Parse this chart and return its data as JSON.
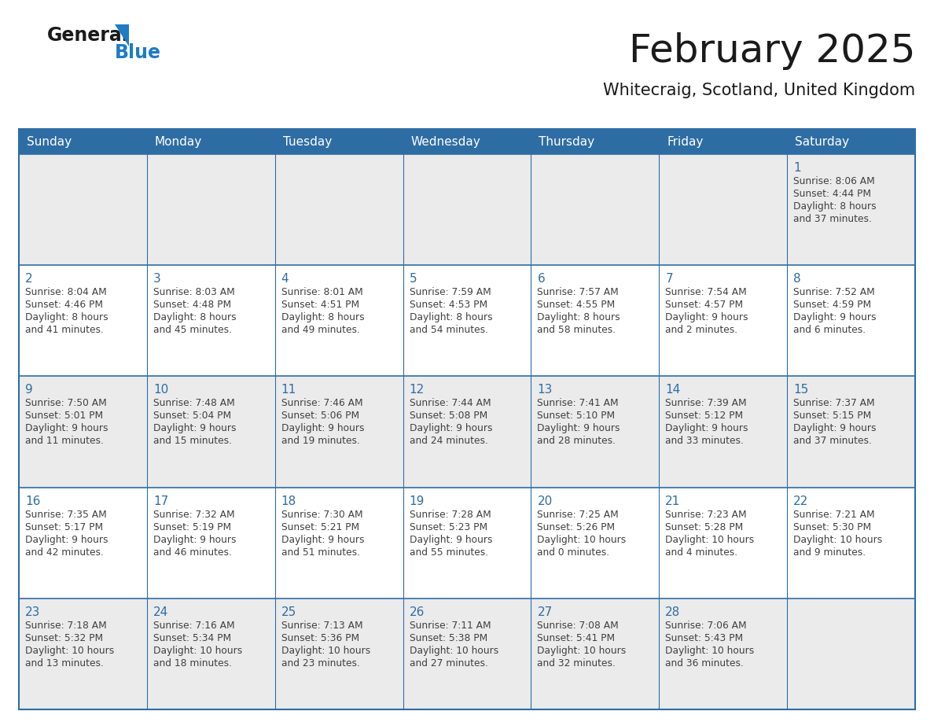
{
  "title": "February 2025",
  "subtitle": "Whitecraig, Scotland, United Kingdom",
  "header_bg": "#2E6DA4",
  "header_text_color": "#FFFFFF",
  "cell_bg_odd": "#EBEBEB",
  "cell_bg_even": "#FFFFFF",
  "cell_border_color": "#2E6DA4",
  "day_number_color": "#2E6DA4",
  "cell_text_color": "#404040",
  "title_color": "#1a1a1a",
  "subtitle_color": "#1a1a1a",
  "days_of_week": [
    "Sunday",
    "Monday",
    "Tuesday",
    "Wednesday",
    "Thursday",
    "Friday",
    "Saturday"
  ],
  "weeks": [
    [
      {
        "day": null,
        "sunrise": null,
        "sunset": null,
        "daylight": null
      },
      {
        "day": null,
        "sunrise": null,
        "sunset": null,
        "daylight": null
      },
      {
        "day": null,
        "sunrise": null,
        "sunset": null,
        "daylight": null
      },
      {
        "day": null,
        "sunrise": null,
        "sunset": null,
        "daylight": null
      },
      {
        "day": null,
        "sunrise": null,
        "sunset": null,
        "daylight": null
      },
      {
        "day": null,
        "sunrise": null,
        "sunset": null,
        "daylight": null
      },
      {
        "day": 1,
        "sunrise": "8:06 AM",
        "sunset": "4:44 PM",
        "daylight": "8 hours\nand 37 minutes."
      }
    ],
    [
      {
        "day": 2,
        "sunrise": "8:04 AM",
        "sunset": "4:46 PM",
        "daylight": "8 hours\nand 41 minutes."
      },
      {
        "day": 3,
        "sunrise": "8:03 AM",
        "sunset": "4:48 PM",
        "daylight": "8 hours\nand 45 minutes."
      },
      {
        "day": 4,
        "sunrise": "8:01 AM",
        "sunset": "4:51 PM",
        "daylight": "8 hours\nand 49 minutes."
      },
      {
        "day": 5,
        "sunrise": "7:59 AM",
        "sunset": "4:53 PM",
        "daylight": "8 hours\nand 54 minutes."
      },
      {
        "day": 6,
        "sunrise": "7:57 AM",
        "sunset": "4:55 PM",
        "daylight": "8 hours\nand 58 minutes."
      },
      {
        "day": 7,
        "sunrise": "7:54 AM",
        "sunset": "4:57 PM",
        "daylight": "9 hours\nand 2 minutes."
      },
      {
        "day": 8,
        "sunrise": "7:52 AM",
        "sunset": "4:59 PM",
        "daylight": "9 hours\nand 6 minutes."
      }
    ],
    [
      {
        "day": 9,
        "sunrise": "7:50 AM",
        "sunset": "5:01 PM",
        "daylight": "9 hours\nand 11 minutes."
      },
      {
        "day": 10,
        "sunrise": "7:48 AM",
        "sunset": "5:04 PM",
        "daylight": "9 hours\nand 15 minutes."
      },
      {
        "day": 11,
        "sunrise": "7:46 AM",
        "sunset": "5:06 PM",
        "daylight": "9 hours\nand 19 minutes."
      },
      {
        "day": 12,
        "sunrise": "7:44 AM",
        "sunset": "5:08 PM",
        "daylight": "9 hours\nand 24 minutes."
      },
      {
        "day": 13,
        "sunrise": "7:41 AM",
        "sunset": "5:10 PM",
        "daylight": "9 hours\nand 28 minutes."
      },
      {
        "day": 14,
        "sunrise": "7:39 AM",
        "sunset": "5:12 PM",
        "daylight": "9 hours\nand 33 minutes."
      },
      {
        "day": 15,
        "sunrise": "7:37 AM",
        "sunset": "5:15 PM",
        "daylight": "9 hours\nand 37 minutes."
      }
    ],
    [
      {
        "day": 16,
        "sunrise": "7:35 AM",
        "sunset": "5:17 PM",
        "daylight": "9 hours\nand 42 minutes."
      },
      {
        "day": 17,
        "sunrise": "7:32 AM",
        "sunset": "5:19 PM",
        "daylight": "9 hours\nand 46 minutes."
      },
      {
        "day": 18,
        "sunrise": "7:30 AM",
        "sunset": "5:21 PM",
        "daylight": "9 hours\nand 51 minutes."
      },
      {
        "day": 19,
        "sunrise": "7:28 AM",
        "sunset": "5:23 PM",
        "daylight": "9 hours\nand 55 minutes."
      },
      {
        "day": 20,
        "sunrise": "7:25 AM",
        "sunset": "5:26 PM",
        "daylight": "10 hours\nand 0 minutes."
      },
      {
        "day": 21,
        "sunrise": "7:23 AM",
        "sunset": "5:28 PM",
        "daylight": "10 hours\nand 4 minutes."
      },
      {
        "day": 22,
        "sunrise": "7:21 AM",
        "sunset": "5:30 PM",
        "daylight": "10 hours\nand 9 minutes."
      }
    ],
    [
      {
        "day": 23,
        "sunrise": "7:18 AM",
        "sunset": "5:32 PM",
        "daylight": "10 hours\nand 13 minutes."
      },
      {
        "day": 24,
        "sunrise": "7:16 AM",
        "sunset": "5:34 PM",
        "daylight": "10 hours\nand 18 minutes."
      },
      {
        "day": 25,
        "sunrise": "7:13 AM",
        "sunset": "5:36 PM",
        "daylight": "10 hours\nand 23 minutes."
      },
      {
        "day": 26,
        "sunrise": "7:11 AM",
        "sunset": "5:38 PM",
        "daylight": "10 hours\nand 27 minutes."
      },
      {
        "day": 27,
        "sunrise": "7:08 AM",
        "sunset": "5:41 PM",
        "daylight": "10 hours\nand 32 minutes."
      },
      {
        "day": 28,
        "sunrise": "7:06 AM",
        "sunset": "5:43 PM",
        "daylight": "10 hours\nand 36 minutes."
      },
      {
        "day": null,
        "sunrise": null,
        "sunset": null,
        "daylight": null
      }
    ]
  ],
  "logo_color_general": "#1a1a1a",
  "logo_color_blue": "#1E7BC4",
  "fig_width": 11.88,
  "fig_height": 9.18,
  "dpi": 100
}
